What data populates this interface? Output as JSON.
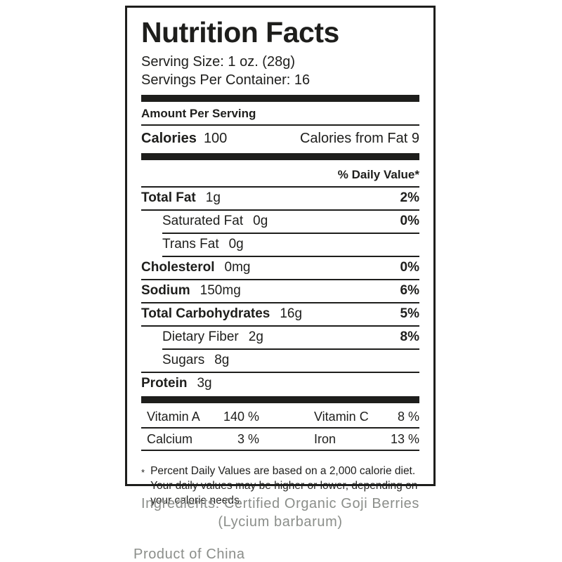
{
  "label": {
    "title": "Nutrition Facts",
    "serving_size": "Serving Size: 1 oz. (28g)",
    "servings_per_container": "Servings Per Container: 16",
    "amount_per_serving": "Amount Per Serving",
    "calories_label": "Calories",
    "calories_value": "100",
    "calories_from_fat": "Calories from Fat 9",
    "daily_value_header": "% Daily Value*",
    "nutrients": [
      {
        "label": "Total Fat",
        "amount": "1g",
        "dv": "2%"
      },
      {
        "label": "Saturated Fat",
        "amount": "0g",
        "dv": "0%"
      },
      {
        "label": "Trans Fat",
        "amount": "0g",
        "dv": ""
      },
      {
        "label": "Cholesterol",
        "amount": "0mg",
        "dv": "0%"
      },
      {
        "label": "Sodium",
        "amount": "150mg",
        "dv": "6%"
      },
      {
        "label": "Total Carbohydrates",
        "amount": "16g",
        "dv": "5%"
      },
      {
        "label": "Dietary Fiber",
        "amount": "2g",
        "dv": "8%"
      },
      {
        "label": "Sugars",
        "amount": "8g",
        "dv": ""
      },
      {
        "label": "Protein",
        "amount": "3g",
        "dv": ""
      }
    ],
    "vitamins": [
      {
        "label": "Vitamin A",
        "value": "140 %"
      },
      {
        "label": "Vitamin C",
        "value": "8 %"
      },
      {
        "label": "Calcium",
        "value": "3 %"
      },
      {
        "label": "Iron",
        "value": "13 %"
      }
    ],
    "footnote_marker": "*",
    "footnote": "Percent Daily Values are based on a 2,000 calorie diet. Your daily values may be higher or lower, depending on your calorie needs."
  },
  "ingredients": {
    "line1": "Ingredients: Certified Organic Goji Berries",
    "line2": "(Lycium barbarum)"
  },
  "product_origin": "Product of China",
  "colors": {
    "text": "#1e1e1c",
    "muted": "#8b8e8a"
  }
}
